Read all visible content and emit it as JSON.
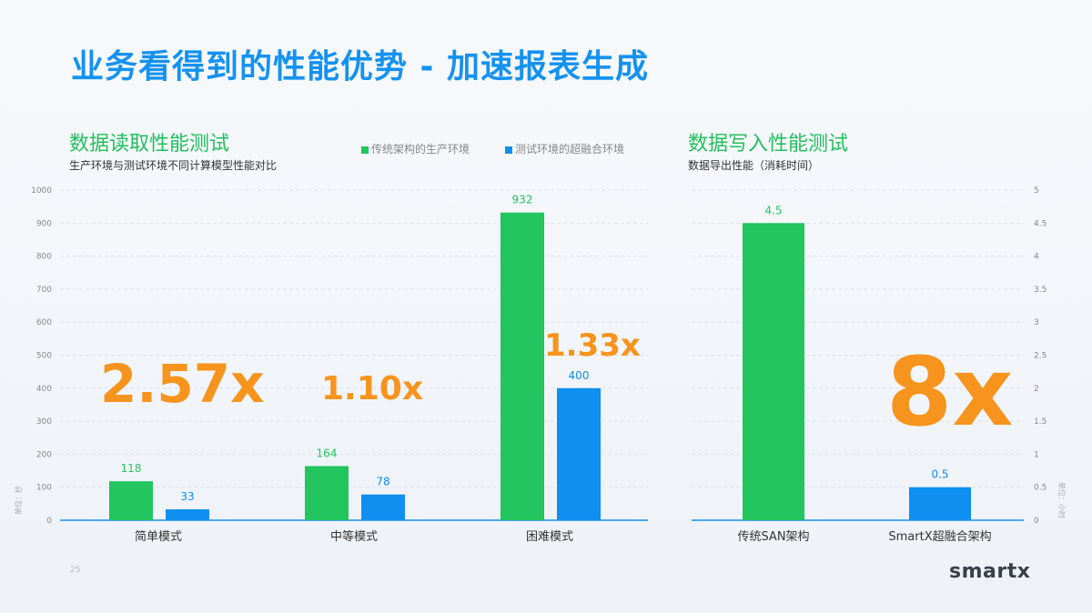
{
  "slide": {
    "title": "业务看得到的性能优势 - 加速报表生成",
    "page_number": "25",
    "logo": "smartx"
  },
  "colors": {
    "green": "#22c55e",
    "blue": "#0f8ff0",
    "orange": "#f7941d",
    "title_blue": "#1592f0"
  },
  "left_section": {
    "title": "数据读取性能测试",
    "subtitle": "生产环境与测试环境不同计算模型性能对比",
    "multipliers": [
      "2.57x",
      "1.10x",
      "1.33x"
    ]
  },
  "right_section": {
    "title": "数据写入性能测试",
    "subtitle": "数据导出性能（消耗时间）",
    "multiplier": "8x"
  },
  "chart_data": [
    {
      "type": "bar",
      "categories": [
        "简单模式",
        "中等模式",
        "困难模式"
      ],
      "series": [
        {
          "name": "传统架构的生产环境",
          "color": "#22c55e",
          "values": [
            118,
            164,
            932
          ]
        },
        {
          "name": "测试环境的超融合环境",
          "color": "#0f8ff0",
          "values": [
            33,
            78,
            400
          ]
        }
      ],
      "ylabel": "单位：秒",
      "ylim": [
        0,
        1000
      ],
      "yticks": [
        0,
        100,
        200,
        300,
        400,
        500,
        600,
        700,
        800,
        900,
        1000
      ],
      "grid": true,
      "legend": "top"
    },
    {
      "type": "bar",
      "categories": [
        "传统SAN架构",
        "SmartX超融合架构"
      ],
      "values": [
        4.5,
        0.5
      ],
      "colors": [
        "#22c55e",
        "#0f8ff0"
      ],
      "ylabel": "单位：小时",
      "ylim": [
        0,
        5
      ],
      "yticks": [
        "0",
        "0.5",
        "1",
        "1.5",
        "2",
        "2.5",
        "3",
        "3.5",
        "4",
        "4.5",
        "5"
      ],
      "grid": true
    }
  ]
}
